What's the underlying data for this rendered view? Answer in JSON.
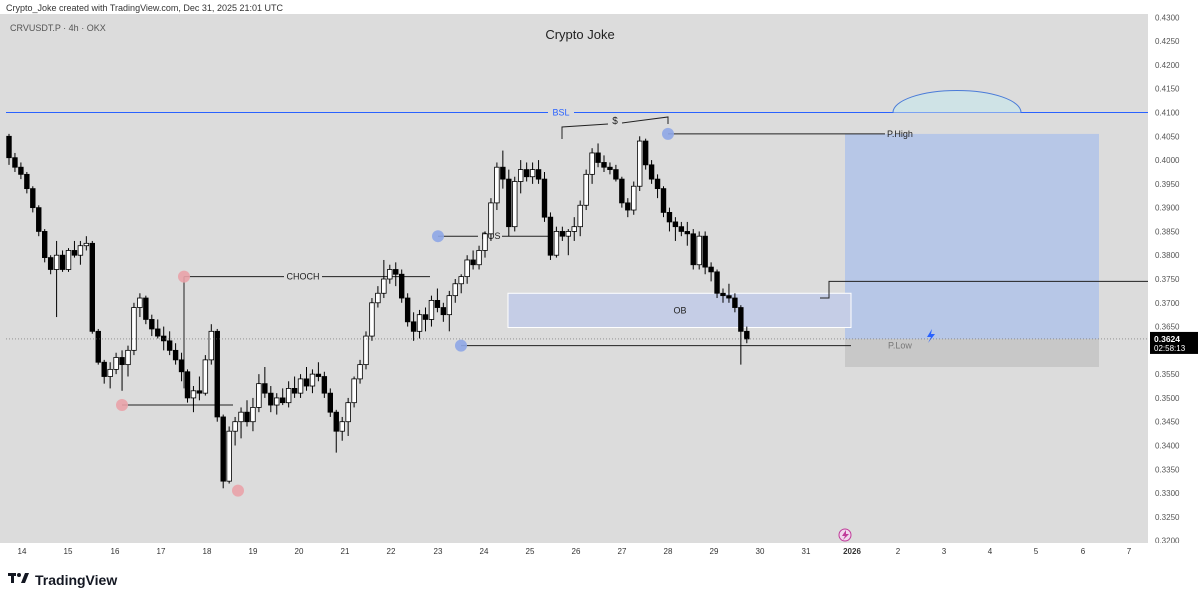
{
  "header": {
    "created_by": "Crypto_Joke created with TradingView.com, Dec 31, 2025 21:01 UTC",
    "symbol": "CRVUSDT.P · 4h · OKX",
    "title": "Crypto Joke"
  },
  "brand": {
    "logo_icon": "tradingview-logo-icon",
    "name": "TradingView"
  },
  "colors": {
    "background": "#dcdcdc",
    "candle_up": "#ffffff",
    "candle_down": "#000000",
    "bsl_line": "#2962ff",
    "ob_zone": "#c5cde6",
    "target_box": "#b3c4e8",
    "stop_box": "#c8c8c8",
    "pivot_low": "#e9a2a8",
    "pivot_high": "#8ea6e6"
  },
  "price_label": {
    "price": "0.3624",
    "countdown": "02:58:13"
  },
  "chart_data": {
    "type": "candlestick",
    "title": "Crypto Joke",
    "timeframe": "4h",
    "ylim": [
      0.3195,
      0.4305
    ],
    "yticks": [
      "0.4300",
      "0.4250",
      "0.4200",
      "0.4150",
      "0.4100",
      "0.4050",
      "0.4000",
      "0.3950",
      "0.3900",
      "0.3850",
      "0.3800",
      "0.3750",
      "0.3700",
      "0.3650",
      "0.3600",
      "0.3550",
      "0.3500",
      "0.3450",
      "0.3400",
      "0.3350",
      "0.3300",
      "0.3250",
      "0.3200"
    ],
    "xticks": [
      "14",
      "15",
      "16",
      "17",
      "18",
      "19",
      "20",
      "21",
      "22",
      "23",
      "24",
      "25",
      "26",
      "27",
      "28",
      "29",
      "30",
      "31",
      "2026",
      "2",
      "3",
      "4",
      "5",
      "6",
      "7"
    ],
    "candles": [
      [
        0.405,
        0.4055,
        0.399,
        0.4005
      ],
      [
        0.4005,
        0.4015,
        0.3975,
        0.3985
      ],
      [
        0.3985,
        0.3995,
        0.396,
        0.397
      ],
      [
        0.397,
        0.3975,
        0.393,
        0.394
      ],
      [
        0.394,
        0.3945,
        0.389,
        0.39
      ],
      [
        0.39,
        0.3905,
        0.384,
        0.385
      ],
      [
        0.385,
        0.3855,
        0.3785,
        0.3795
      ],
      [
        0.3795,
        0.38,
        0.376,
        0.377
      ],
      [
        0.377,
        0.383,
        0.367,
        0.38
      ],
      [
        0.38,
        0.381,
        0.3765,
        0.377
      ],
      [
        0.377,
        0.3815,
        0.3765,
        0.381
      ],
      [
        0.381,
        0.383,
        0.3795,
        0.38
      ],
      [
        0.38,
        0.383,
        0.378,
        0.382
      ],
      [
        0.382,
        0.384,
        0.381,
        0.3825
      ],
      [
        0.3825,
        0.383,
        0.3635,
        0.364
      ],
      [
        0.364,
        0.3645,
        0.357,
        0.3575
      ],
      [
        0.3575,
        0.358,
        0.353,
        0.3545
      ],
      [
        0.3545,
        0.3575,
        0.352,
        0.356
      ],
      [
        0.356,
        0.3595,
        0.355,
        0.3585
      ],
      [
        0.3585,
        0.36,
        0.3515,
        0.357
      ],
      [
        0.357,
        0.361,
        0.3545,
        0.36
      ],
      [
        0.36,
        0.37,
        0.359,
        0.369
      ],
      [
        0.369,
        0.372,
        0.367,
        0.371
      ],
      [
        0.371,
        0.3715,
        0.3655,
        0.3665
      ],
      [
        0.3665,
        0.3675,
        0.363,
        0.3645
      ],
      [
        0.3645,
        0.3665,
        0.3625,
        0.363
      ],
      [
        0.363,
        0.365,
        0.36,
        0.362
      ],
      [
        0.362,
        0.364,
        0.359,
        0.36
      ],
      [
        0.36,
        0.3615,
        0.357,
        0.358
      ],
      [
        0.358,
        0.3595,
        0.3535,
        0.3555
      ],
      [
        0.3555,
        0.356,
        0.349,
        0.35
      ],
      [
        0.35,
        0.3525,
        0.347,
        0.3515
      ],
      [
        0.3515,
        0.3545,
        0.3495,
        0.351
      ],
      [
        0.351,
        0.359,
        0.3505,
        0.358
      ],
      [
        0.358,
        0.3655,
        0.357,
        0.364
      ],
      [
        0.364,
        0.3645,
        0.345,
        0.346
      ],
      [
        0.346,
        0.3465,
        0.331,
        0.3325
      ],
      [
        0.3325,
        0.344,
        0.332,
        0.343
      ],
      [
        0.343,
        0.346,
        0.34,
        0.345
      ],
      [
        0.345,
        0.348,
        0.3415,
        0.347
      ],
      [
        0.347,
        0.3495,
        0.344,
        0.345
      ],
      [
        0.345,
        0.35,
        0.343,
        0.348
      ],
      [
        0.348,
        0.355,
        0.347,
        0.353
      ],
      [
        0.353,
        0.3565,
        0.35,
        0.351
      ],
      [
        0.351,
        0.3525,
        0.347,
        0.3485
      ],
      [
        0.3485,
        0.351,
        0.3465,
        0.35
      ],
      [
        0.35,
        0.352,
        0.3485,
        0.349
      ],
      [
        0.349,
        0.3535,
        0.348,
        0.352
      ],
      [
        0.352,
        0.3545,
        0.35,
        0.351
      ],
      [
        0.351,
        0.355,
        0.35,
        0.354
      ],
      [
        0.354,
        0.3565,
        0.3515,
        0.3525
      ],
      [
        0.3525,
        0.356,
        0.351,
        0.355
      ],
      [
        0.355,
        0.3575,
        0.3535,
        0.3545
      ],
      [
        0.3545,
        0.3555,
        0.35,
        0.351
      ],
      [
        0.351,
        0.352,
        0.346,
        0.347
      ],
      [
        0.347,
        0.3475,
        0.3385,
        0.343
      ],
      [
        0.343,
        0.346,
        0.341,
        0.345
      ],
      [
        0.345,
        0.35,
        0.342,
        0.349
      ],
      [
        0.349,
        0.3545,
        0.348,
        0.354
      ],
      [
        0.354,
        0.358,
        0.353,
        0.357
      ],
      [
        0.357,
        0.364,
        0.356,
        0.363
      ],
      [
        0.363,
        0.371,
        0.362,
        0.37
      ],
      [
        0.37,
        0.3735,
        0.369,
        0.372
      ],
      [
        0.372,
        0.379,
        0.371,
        0.375
      ],
      [
        0.375,
        0.378,
        0.374,
        0.377
      ],
      [
        0.377,
        0.3785,
        0.3735,
        0.376
      ],
      [
        0.376,
        0.377,
        0.37,
        0.371
      ],
      [
        0.371,
        0.372,
        0.365,
        0.366
      ],
      [
        0.366,
        0.368,
        0.362,
        0.364
      ],
      [
        0.364,
        0.3685,
        0.3625,
        0.3675
      ],
      [
        0.3675,
        0.369,
        0.364,
        0.3665
      ],
      [
        0.3665,
        0.3715,
        0.365,
        0.3705
      ],
      [
        0.3705,
        0.373,
        0.368,
        0.369
      ],
      [
        0.369,
        0.37,
        0.366,
        0.3675
      ],
      [
        0.3675,
        0.3725,
        0.364,
        0.3715
      ],
      [
        0.3715,
        0.375,
        0.37,
        0.374
      ],
      [
        0.374,
        0.376,
        0.372,
        0.3755
      ],
      [
        0.3755,
        0.38,
        0.374,
        0.379
      ],
      [
        0.379,
        0.381,
        0.377,
        0.378
      ],
      [
        0.378,
        0.382,
        0.377,
        0.381
      ],
      [
        0.381,
        0.385,
        0.3795,
        0.3845
      ],
      [
        0.3845,
        0.392,
        0.383,
        0.391
      ],
      [
        0.391,
        0.3995,
        0.3895,
        0.3985
      ],
      [
        0.3985,
        0.402,
        0.394,
        0.396
      ],
      [
        0.396,
        0.398,
        0.384,
        0.386
      ],
      [
        0.386,
        0.3965,
        0.385,
        0.3955
      ],
      [
        0.3955,
        0.4,
        0.393,
        0.398
      ],
      [
        0.398,
        0.3995,
        0.3955,
        0.3965
      ],
      [
        0.3965,
        0.3995,
        0.395,
        0.398
      ],
      [
        0.398,
        0.4,
        0.395,
        0.396
      ],
      [
        0.396,
        0.3975,
        0.387,
        0.388
      ],
      [
        0.388,
        0.389,
        0.379,
        0.38
      ],
      [
        0.38,
        0.386,
        0.3795,
        0.385
      ],
      [
        0.385,
        0.386,
        0.383,
        0.384
      ],
      [
        0.384,
        0.3855,
        0.38,
        0.385
      ],
      [
        0.385,
        0.388,
        0.383,
        0.386
      ],
      [
        0.386,
        0.3915,
        0.384,
        0.3905
      ],
      [
        0.3905,
        0.398,
        0.3895,
        0.397
      ],
      [
        0.397,
        0.4025,
        0.395,
        0.4015
      ],
      [
        0.4015,
        0.4035,
        0.3985,
        0.3995
      ],
      [
        0.3995,
        0.401,
        0.3975,
        0.3985
      ],
      [
        0.3985,
        0.3995,
        0.397,
        0.398
      ],
      [
        0.398,
        0.399,
        0.3955,
        0.396
      ],
      [
        0.396,
        0.3965,
        0.39,
        0.391
      ],
      [
        0.391,
        0.392,
        0.388,
        0.3895
      ],
      [
        0.3895,
        0.3955,
        0.3885,
        0.3945
      ],
      [
        0.3945,
        0.405,
        0.3935,
        0.404
      ],
      [
        0.404,
        0.4045,
        0.398,
        0.399
      ],
      [
        0.399,
        0.4,
        0.395,
        0.396
      ],
      [
        0.396,
        0.397,
        0.392,
        0.394
      ],
      [
        0.394,
        0.3945,
        0.388,
        0.389
      ],
      [
        0.389,
        0.39,
        0.385,
        0.387
      ],
      [
        0.387,
        0.388,
        0.383,
        0.386
      ],
      [
        0.386,
        0.387,
        0.384,
        0.385
      ],
      [
        0.385,
        0.387,
        0.382,
        0.3845
      ],
      [
        0.3845,
        0.3855,
        0.377,
        0.378
      ],
      [
        0.378,
        0.385,
        0.377,
        0.384
      ],
      [
        0.384,
        0.385,
        0.376,
        0.3775
      ],
      [
        0.3775,
        0.3785,
        0.3745,
        0.3765
      ],
      [
        0.3765,
        0.377,
        0.371,
        0.372
      ],
      [
        0.372,
        0.373,
        0.37,
        0.3715
      ],
      [
        0.3715,
        0.374,
        0.37,
        0.371
      ],
      [
        0.371,
        0.372,
        0.368,
        0.369
      ],
      [
        0.369,
        0.3695,
        0.357,
        0.364
      ],
      [
        0.364,
        0.365,
        0.3615,
        0.3624
      ]
    ],
    "annotations": {
      "bsl": {
        "label": "BSL",
        "price": 0.41
      },
      "p_high": {
        "label": "P.High",
        "price": 0.4055
      },
      "p_low": {
        "label": "P.Low",
        "price": 0.361
      },
      "ob": {
        "label": "OB",
        "top": 0.372,
        "bottom": 0.3648
      },
      "bos": {
        "label": "BOS",
        "price": 0.384
      },
      "choch": {
        "label": "CHOCH",
        "price": 0.3755
      },
      "sweep": {
        "label": "$"
      },
      "target_zone": {
        "top": 0.4055,
        "bottom": 0.3624
      },
      "stop_zone": {
        "top": 0.3624,
        "bottom": 0.3565
      },
      "level_line": {
        "price": 0.3745
      }
    }
  }
}
